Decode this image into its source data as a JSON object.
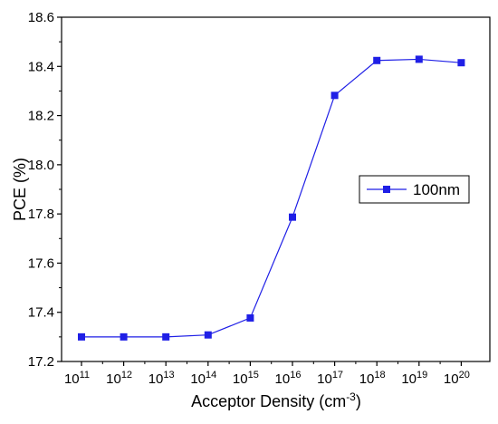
{
  "chart_data": {
    "type": "line",
    "xlabel": "Acceptor Density (cm",
    "xlabel_exponent": "-3",
    "xlabel_suffix": ")",
    "ylabel": "PCE (%)",
    "x": [
      "10^11",
      "10^12",
      "10^13",
      "10^14",
      "10^15",
      "10^16",
      "10^17",
      "10^18",
      "10^19",
      "10^20"
    ],
    "x_tick_base": "10",
    "x_tick_exponents": [
      "11",
      "12",
      "13",
      "14",
      "15",
      "16",
      "17",
      "18",
      "19",
      "20"
    ],
    "y_ticks": [
      "17.2",
      "17.4",
      "17.6",
      "17.8",
      "18.0",
      "18.2",
      "18.4",
      "18.6"
    ],
    "ylim": [
      17.2,
      18.6
    ],
    "x_scale": "log",
    "grid": false,
    "legend_position": "right-middle",
    "series": [
      {
        "name": "100nm",
        "color": "#1f1fe6",
        "marker": "square",
        "values": [
          17.3,
          17.3,
          17.3,
          17.308,
          17.377,
          17.787,
          18.282,
          18.424,
          18.429,
          18.415
        ]
      }
    ]
  }
}
